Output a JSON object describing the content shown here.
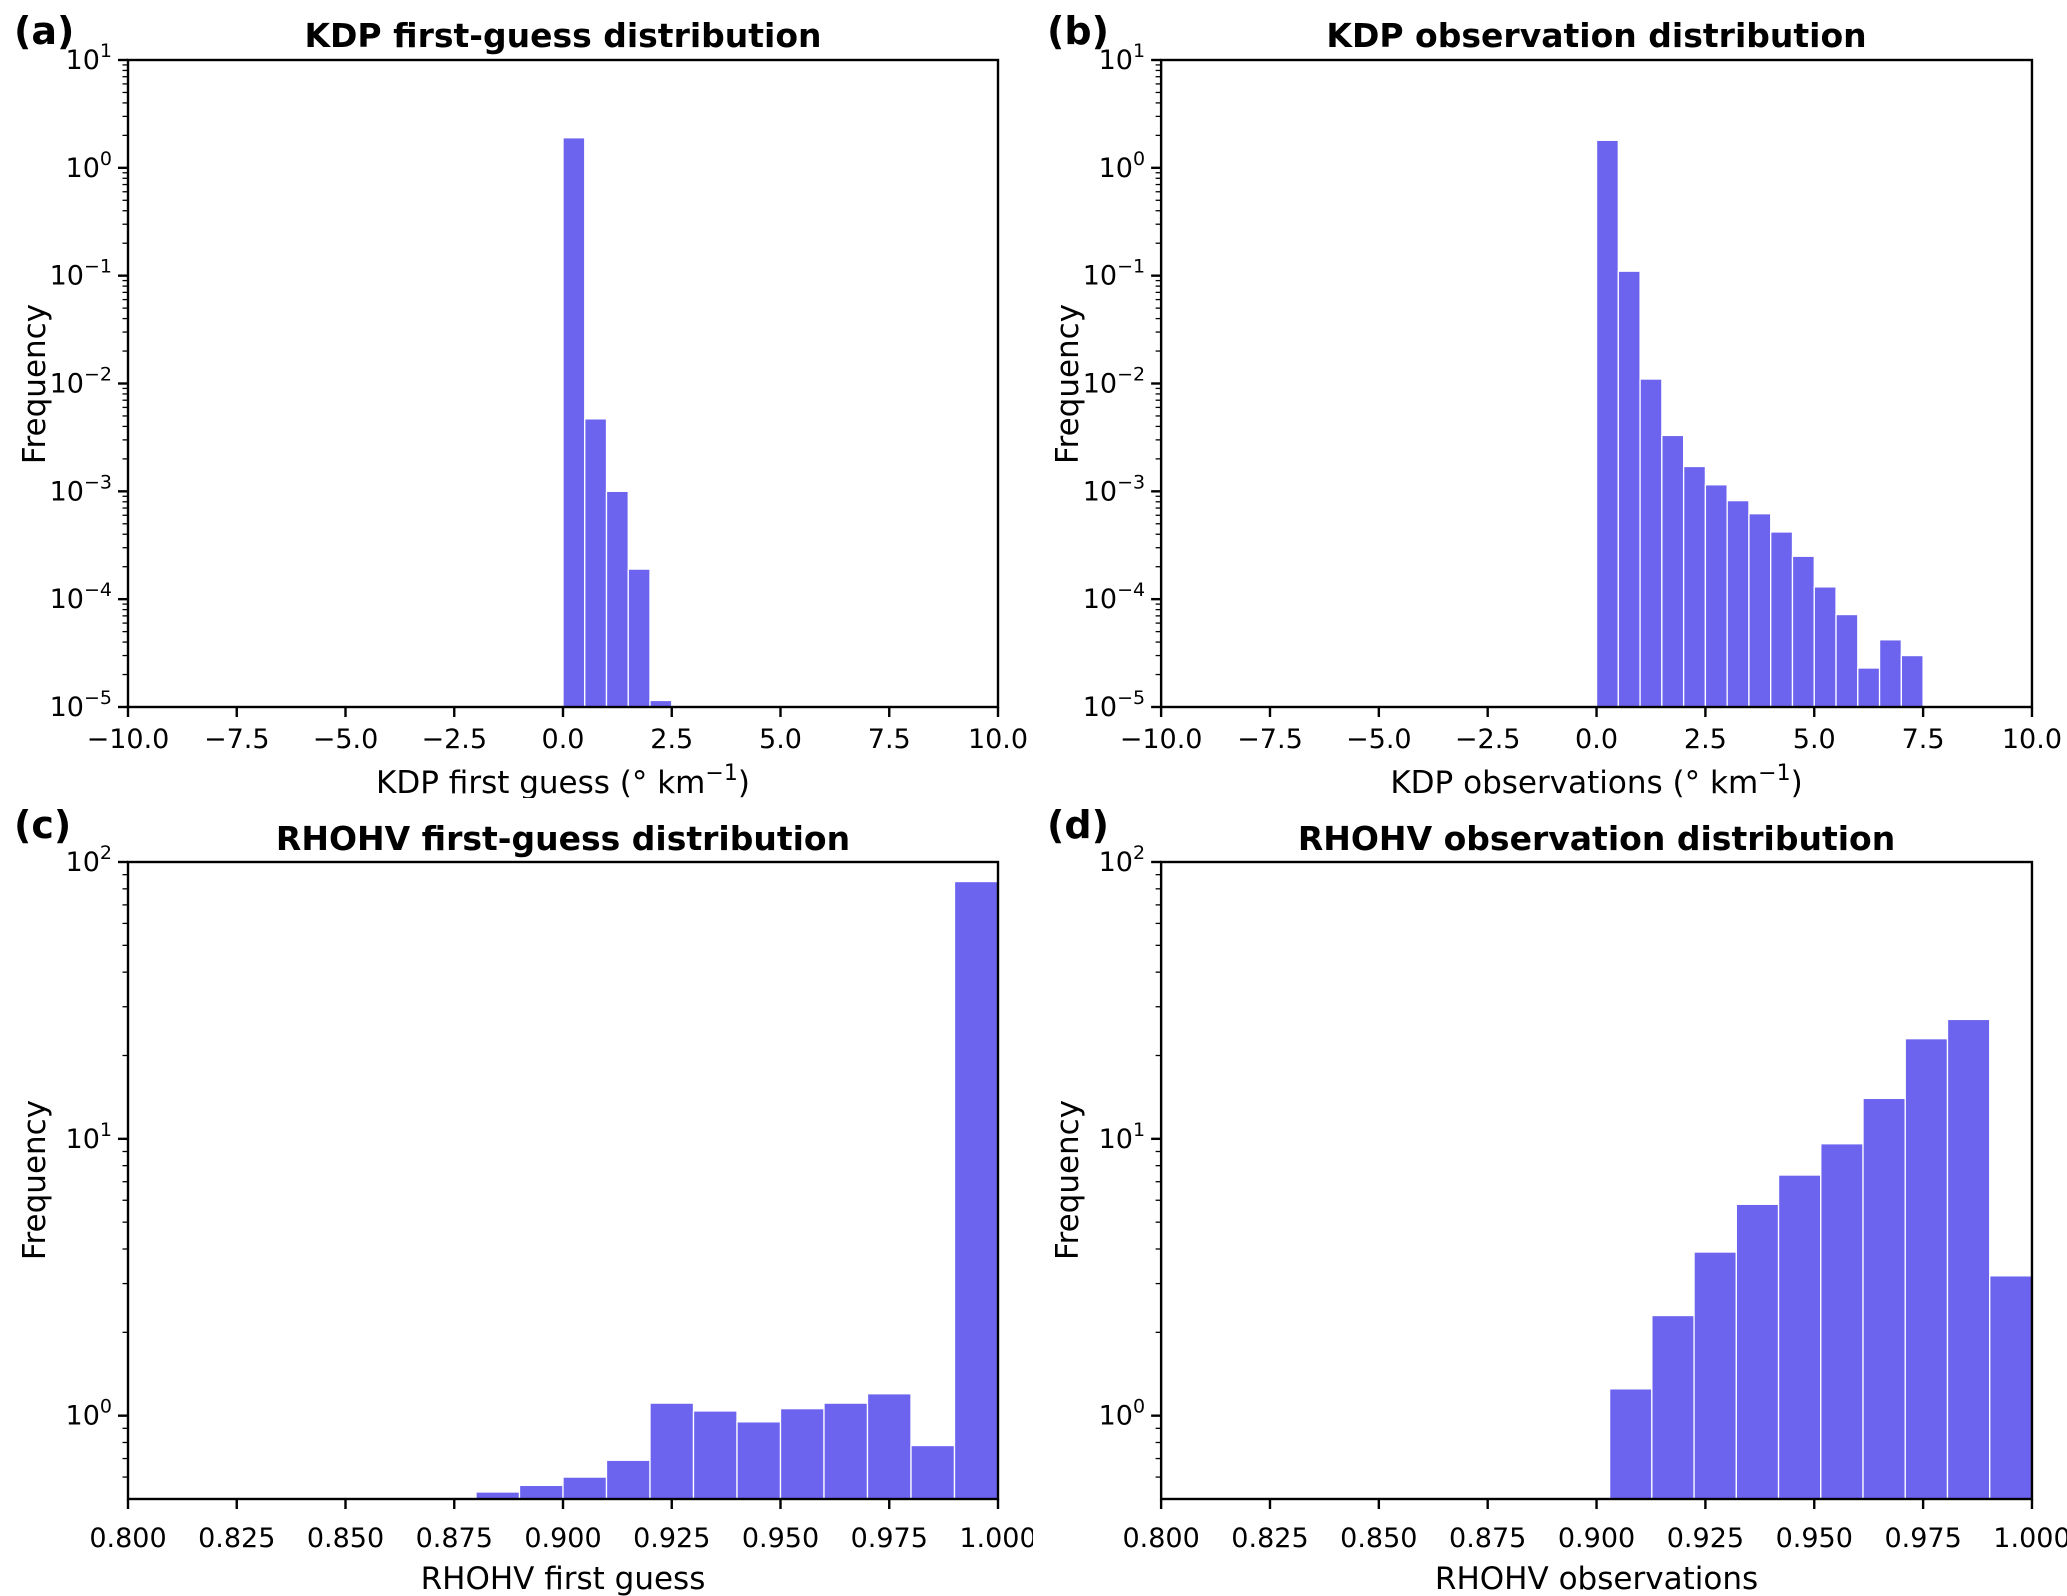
{
  "colors": {
    "bar_fill": "#6c63ef",
    "bar_edge": "#ffffff",
    "axis": "#000000",
    "background": "#ffffff"
  },
  "ylabel_shared": "Frequency",
  "chart_data": [
    {
      "panel": "(a)",
      "type": "bar",
      "title": "KDP first-guess distribution",
      "xlabel": "KDP first guess (° km⁻¹)",
      "ylabel": "Frequency",
      "legend": "none",
      "grid": "off",
      "yscale": "log",
      "xlim": [
        -10,
        10
      ],
      "ylim": [
        1e-05,
        10
      ],
      "ytick_exponents": [
        1,
        0,
        -1,
        -2,
        -3,
        -4,
        -5
      ],
      "xtick_values": [
        -10,
        -7.5,
        -5,
        -2.5,
        0,
        2.5,
        5,
        7.5,
        10
      ],
      "xtick_labels": [
        "−10.0",
        "−7.5",
        "−5.0",
        "−2.5",
        "0.0",
        "2.5",
        "5.0",
        "7.5",
        "10.0"
      ],
      "bin_edges": [
        0.0,
        0.5,
        1.0,
        1.5,
        2.0,
        2.5
      ],
      "values": [
        1.9,
        0.0047,
        0.001,
        0.00019,
        1.15e-05
      ]
    },
    {
      "panel": "(b)",
      "type": "bar",
      "title": "KDP observation distribution",
      "xlabel": "KDP observations (° km⁻¹)",
      "ylabel": "Frequency",
      "legend": "none",
      "grid": "off",
      "yscale": "log",
      "xlim": [
        -10,
        10
      ],
      "ylim": [
        1e-05,
        10
      ],
      "ytick_exponents": [
        1,
        0,
        -1,
        -2,
        -3,
        -4,
        -5
      ],
      "xtick_values": [
        -10,
        -7.5,
        -5,
        -2.5,
        0,
        2.5,
        5,
        7.5,
        10
      ],
      "xtick_labels": [
        "−10.0",
        "−7.5",
        "−5.0",
        "−2.5",
        "0.0",
        "2.5",
        "5.0",
        "7.5",
        "10.0"
      ],
      "bin_edges": [
        0.0,
        0.5,
        1.0,
        1.5,
        2.0,
        2.5,
        3.0,
        3.5,
        4.0,
        4.5,
        5.0,
        5.5,
        6.0,
        6.5,
        7.0,
        7.5
      ],
      "values": [
        1.8,
        0.11,
        0.011,
        0.0033,
        0.0017,
        0.00115,
        0.00082,
        0.00062,
        0.00042,
        0.00025,
        0.00013,
        7.2e-05,
        2.3e-05,
        4.2e-05,
        3e-05
      ]
    },
    {
      "panel": "(c)",
      "type": "bar",
      "title": "RHOHV first-guess distribution",
      "xlabel": "RHOHV first guess",
      "ylabel": "Frequency",
      "legend": "none",
      "grid": "off",
      "yscale": "log",
      "xlim": [
        0.8,
        1.0
      ],
      "ylim": [
        0.5,
        100
      ],
      "ytick_exponents": [
        2,
        1,
        0
      ],
      "xtick_values": [
        0.8,
        0.825,
        0.85,
        0.875,
        0.9,
        0.925,
        0.95,
        0.975,
        1.0
      ],
      "xtick_labels": [
        "0.800",
        "0.825",
        "0.850",
        "0.875",
        "0.900",
        "0.925",
        "0.950",
        "0.975",
        "1.000"
      ],
      "bin_edges": [
        0.88,
        0.89,
        0.9,
        0.91,
        0.92,
        0.93,
        0.94,
        0.95,
        0.96,
        0.97,
        0.98,
        0.99,
        1.0
      ],
      "values": [
        0.53,
        0.56,
        0.6,
        0.69,
        1.11,
        1.04,
        0.95,
        1.06,
        1.11,
        1.2,
        0.78,
        85
      ]
    },
    {
      "panel": "(d)",
      "type": "bar",
      "title": "RHOHV observation distribution",
      "xlabel": "RHOHV observations",
      "ylabel": "Frequency",
      "legend": "none",
      "grid": "off",
      "yscale": "log",
      "xlim": [
        0.8,
        1.0
      ],
      "ylim": [
        0.5,
        100
      ],
      "ytick_exponents": [
        2,
        1,
        0
      ],
      "xtick_values": [
        0.8,
        0.825,
        0.85,
        0.875,
        0.9,
        0.925,
        0.95,
        0.975,
        1.0
      ],
      "xtick_labels": [
        "0.800",
        "0.825",
        "0.850",
        "0.875",
        "0.900",
        "0.925",
        "0.950",
        "0.975",
        "1.000"
      ],
      "bin_edges": [
        0.903,
        0.9127,
        0.9224,
        0.9321,
        0.9418,
        0.9515,
        0.9612,
        0.9709,
        0.9806,
        0.9903,
        1.0
      ],
      "values": [
        1.25,
        2.3,
        3.9,
        5.8,
        7.4,
        9.6,
        14,
        23,
        27,
        3.2
      ]
    }
  ]
}
